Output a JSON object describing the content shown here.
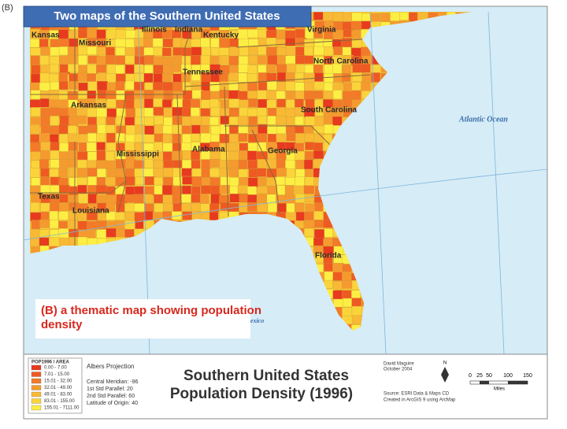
{
  "header": {
    "panel": "(B)",
    "title": "Two maps of the Southern United States"
  },
  "map": {
    "states": [
      "Kansas",
      "Missouri",
      "Illinois",
      "Indiana",
      "Kentucky",
      "Virginia",
      "Tennessee",
      "North Carolina",
      "Arkansas",
      "South Carolina",
      "Mississippi",
      "Alabama",
      "Georgia",
      "Texas",
      "Louisiana",
      "Florida"
    ],
    "water": [
      "Atlantic Ocean",
      "Gulf of Mexico"
    ],
    "caption": "(B) a thematic map showing population density"
  },
  "legend": {
    "heading": "POP1996 / AREA",
    "items": [
      {
        "label": "0.00 - 7.00",
        "color": "#e83a1e"
      },
      {
        "label": "7.01 - 15.00",
        "color": "#ee5a22"
      },
      {
        "label": "15.01 - 32.00",
        "color": "#f27a28"
      },
      {
        "label": "32.01 - 49.00",
        "color": "#f59a2e"
      },
      {
        "label": "49.01 - 83.00",
        "color": "#f8b934"
      },
      {
        "label": "83.01 - 155.00",
        "color": "#fad43a"
      },
      {
        "label": "155.01 - 7111.00",
        "color": "#fdee44"
      }
    ]
  },
  "projection": [
    "Albers Projection",
    "Central Meridian: -96",
    "1st Std Parallel: 20",
    "2nd Std Parallel: 60",
    "Latitude of Origin: 40"
  ],
  "map_title": [
    "Southern United States",
    "Population Density (1996)"
  ],
  "credits": [
    "David Maguire",
    "October 2004",
    "Source: ESRI Data & Maps CD",
    "Created in ArcGIS 9 using ArcMap"
  ],
  "scale": {
    "ticks": [
      "0",
      "25",
      "50",
      "100",
      "150"
    ],
    "unit": "Miles",
    "north": "N"
  }
}
